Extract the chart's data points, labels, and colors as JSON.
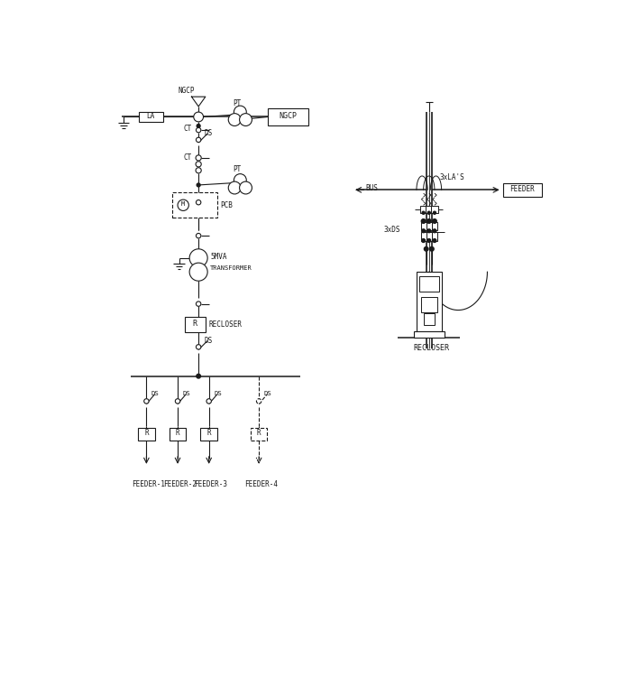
{
  "bg_color": "#ffffff",
  "line_color": "#1a1a1a",
  "feeder_labels": [
    "FEEDER-1",
    "FEEDER-2",
    "FEEDER-3",
    "FEEDER-4"
  ]
}
